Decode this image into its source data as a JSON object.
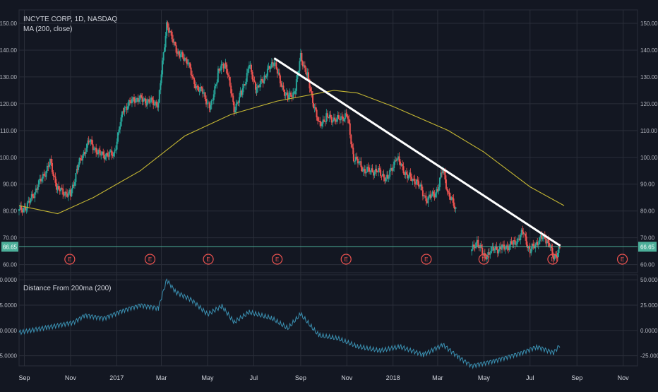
{
  "chart_data": [
    {
      "type": "candlestick",
      "title": "INCYTE CORP, 1D, NASDAQ",
      "indicator_label": "MA (200, close)",
      "ylim": [
        57,
        155
      ],
      "y_ticks": [
        "60.00",
        "70.00",
        "80.00",
        "90.00",
        "100.00",
        "110.00",
        "120.00",
        "130.00",
        "140.00",
        "150.00"
      ],
      "price_label": "66.65",
      "x_labels": [
        "Sep",
        "Nov",
        "2017",
        "Mar",
        "May",
        "Jul",
        "Sep",
        "Nov",
        "2018",
        "Mar",
        "May",
        "Jul",
        "Sep",
        "Nov"
      ],
      "price_path": [
        [
          "2016-08-25",
          80
        ],
        [
          "2016-09-05",
          82
        ],
        [
          "2016-09-20",
          90
        ],
        [
          "2016-10-05",
          98
        ],
        [
          "2016-10-15",
          88
        ],
        [
          "2016-11-01",
          86
        ],
        [
          "2016-11-10",
          96
        ],
        [
          "2016-11-25",
          106
        ],
        [
          "2016-12-10",
          101
        ],
        [
          "2016-12-28",
          101
        ],
        [
          "2017-01-10",
          118
        ],
        [
          "2017-01-25",
          122
        ],
        [
          "2017-02-10",
          121
        ],
        [
          "2017-02-25",
          120
        ],
        [
          "2017-03-01",
          131
        ],
        [
          "2017-03-08",
          150
        ],
        [
          "2017-03-15",
          144
        ],
        [
          "2017-03-25",
          138
        ],
        [
          "2017-04-05",
          136
        ],
        [
          "2017-04-12",
          128
        ],
        [
          "2017-04-25",
          124
        ],
        [
          "2017-05-05",
          118
        ],
        [
          "2017-05-15",
          132
        ],
        [
          "2017-05-25",
          135
        ],
        [
          "2017-06-05",
          118
        ],
        [
          "2017-06-15",
          124
        ],
        [
          "2017-06-25",
          134
        ],
        [
          "2017-07-05",
          125
        ],
        [
          "2017-07-15",
          130
        ],
        [
          "2017-07-28",
          136
        ],
        [
          "2017-08-05",
          128
        ],
        [
          "2017-08-15",
          122
        ],
        [
          "2017-08-25",
          125
        ],
        [
          "2017-09-01",
          138
        ],
        [
          "2017-09-10",
          130
        ],
        [
          "2017-09-18",
          120
        ],
        [
          "2017-09-25",
          112
        ],
        [
          "2017-10-05",
          115
        ],
        [
          "2017-10-20",
          114
        ],
        [
          "2017-11-01",
          116
        ],
        [
          "2017-11-10",
          100
        ],
        [
          "2017-11-25",
          95
        ],
        [
          "2017-12-10",
          95
        ],
        [
          "2017-12-25",
          92
        ],
        [
          "2018-01-05",
          100
        ],
        [
          "2018-01-20",
          93
        ],
        [
          "2018-02-01",
          91
        ],
        [
          "2018-02-15",
          84
        ],
        [
          "2018-03-01",
          88
        ],
        [
          "2018-03-08",
          96
        ],
        [
          "2018-03-15",
          86
        ],
        [
          "2018-03-25",
          81
        ]
      ],
      "price_path_2": [
        [
          "2018-04-15",
          65
        ],
        [
          "2018-04-22",
          69
        ],
        [
          "2018-05-01",
          63
        ],
        [
          "2018-05-15",
          66
        ],
        [
          "2018-05-25",
          66
        ],
        [
          "2018-06-10",
          68
        ],
        [
          "2018-06-22",
          72
        ],
        [
          "2018-07-01",
          65
        ],
        [
          "2018-07-15",
          70
        ],
        [
          "2018-07-25",
          69
        ],
        [
          "2018-08-01",
          62
        ],
        [
          "2018-08-10",
          67
        ]
      ],
      "ma200": [
        [
          "2016-08-25",
          82
        ],
        [
          "2016-10-15",
          79
        ],
        [
          "2016-12-01",
          85
        ],
        [
          "2017-02-01",
          95
        ],
        [
          "2017-04-01",
          108
        ],
        [
          "2017-06-01",
          116
        ],
        [
          "2017-08-01",
          121
        ],
        [
          "2017-10-15",
          125
        ],
        [
          "2017-11-15",
          124
        ],
        [
          "2018-01-01",
          119
        ],
        [
          "2018-03-15",
          110
        ],
        [
          "2018-05-01",
          102
        ],
        [
          "2018-07-01",
          89
        ],
        [
          "2018-08-15",
          82
        ]
      ],
      "trendline": [
        [
          "2017-07-28",
          137
        ],
        [
          "2018-08-10",
          67
        ]
      ],
      "earnings_markers": [
        "2016-10-31",
        "2017-02-14",
        "2017-05-02",
        "2017-08-01",
        "2017-10-31",
        "2018-02-14",
        "2018-05-01",
        "2018-07-31",
        "2018-10-31"
      ],
      "earnings_label": "E",
      "colors": {
        "up": "#26a69a",
        "down": "#ef5350",
        "ma": "#c5b733",
        "trendline": "#ffffff",
        "price_line": "#4caf9a",
        "earnings": "#ef5350",
        "background": "#131722",
        "grid": "#2a2e39"
      }
    },
    {
      "type": "line",
      "indicator_label": "Distance From 200ma (200)",
      "ylim": [
        -35,
        55
      ],
      "y_ticks": [
        "-25.0000",
        "0.0000",
        "25.0000",
        "50.0000"
      ],
      "series": [
        {
          "values": [
            [
              "2016-08-25",
              -2
            ],
            [
              "2016-10-01",
              3
            ],
            [
              "2016-11-05",
              8
            ],
            [
              "2016-11-20",
              15
            ],
            [
              "2016-12-15",
              12
            ],
            [
              "2017-01-10",
              20
            ],
            [
              "2017-02-01",
              25
            ],
            [
              "2017-02-25",
              22
            ],
            [
              "2017-03-08",
              50
            ],
            [
              "2017-03-20",
              38
            ],
            [
              "2017-04-10",
              30
            ],
            [
              "2017-05-01",
              16
            ],
            [
              "2017-05-20",
              24
            ],
            [
              "2017-06-05",
              8
            ],
            [
              "2017-06-25",
              18
            ],
            [
              "2017-07-25",
              12
            ],
            [
              "2017-08-15",
              2
            ],
            [
              "2017-09-01",
              16
            ],
            [
              "2017-09-25",
              -5
            ],
            [
              "2017-10-20",
              -8
            ],
            [
              "2017-11-15",
              -16
            ],
            [
              "2017-12-15",
              -20
            ],
            [
              "2018-01-10",
              -16
            ],
            [
              "2018-02-10",
              -24
            ],
            [
              "2018-03-08",
              -14
            ],
            [
              "2018-03-28",
              -26
            ],
            [
              "2018-04-15",
              -35
            ],
            [
              "2018-05-15",
              -30
            ],
            [
              "2018-06-20",
              -22
            ],
            [
              "2018-07-10",
              -16
            ],
            [
              "2018-08-01",
              -22
            ],
            [
              "2018-08-10",
              -14
            ]
          ]
        }
      ],
      "colors": {
        "line": "#3a8fb0"
      }
    }
  ]
}
